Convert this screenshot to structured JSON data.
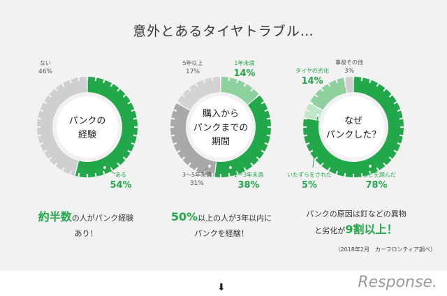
{
  "title": "意外とあるタイヤトラブル…",
  "chart_data": [
    {
      "type": "pie",
      "center_label": [
        "パンクの",
        "経験"
      ],
      "categories": [
        "ある",
        "ない"
      ],
      "values": [
        54,
        46
      ],
      "labels": [
        {
          "name": "ある",
          "value": "54%"
        },
        {
          "name": "ない",
          "value": "46%"
        }
      ],
      "colors": [
        "#22a84a",
        "#cfcfcf"
      ]
    },
    {
      "type": "pie",
      "center_label": [
        "購入から",
        "パンクまでの",
        "期間"
      ],
      "categories": [
        "1年未満",
        "1～3年未満",
        "3～5年未満",
        "5年以上"
      ],
      "values": [
        14,
        38,
        31,
        17
      ],
      "labels": [
        {
          "name": "1年未満",
          "value": "14%"
        },
        {
          "name": "1～3年未満",
          "value": "38%"
        },
        {
          "name": "3～5年未満",
          "value": "31%"
        },
        {
          "name": "5年以上",
          "value": "17%"
        }
      ],
      "colors": [
        "#8fd19e",
        "#22a84a",
        "#a9a9a9",
        "#d3d3d3"
      ]
    },
    {
      "type": "pie",
      "center_label": [
        "なぜ",
        "パンクした？"
      ],
      "categories": [
        "釘などを踏んだ",
        "いたずらをされた",
        "タイヤの劣化",
        "事故その他"
      ],
      "values": [
        78,
        5,
        14,
        3
      ],
      "labels": [
        {
          "name": "釘などを踏んだ",
          "value": "78%"
        },
        {
          "name": "いたずらをされた",
          "value": "5%"
        },
        {
          "name": "タイヤの劣化",
          "value": "14%"
        },
        {
          "name": "事故その他",
          "value": "3%"
        }
      ],
      "colors": [
        "#22a84a",
        "#bfe8c8",
        "#8fd19e",
        "#cfcfcf"
      ]
    }
  ],
  "captions": [
    {
      "hl": "約半数",
      "rest1": "の人がパンク経験",
      "rest2": "あり！"
    },
    {
      "hl": "50%",
      "rest1": "以上の人が3年以内に",
      "rest2": "パンクを経験！"
    },
    {
      "pre": "パンクの原因は釘などの異物",
      "mid": "と劣化が",
      "hl": "9割以上！"
    }
  ],
  "source": "（2018年2月　カーフロンティア調べ）",
  "arrow": "⬇",
  "logo": "Response."
}
